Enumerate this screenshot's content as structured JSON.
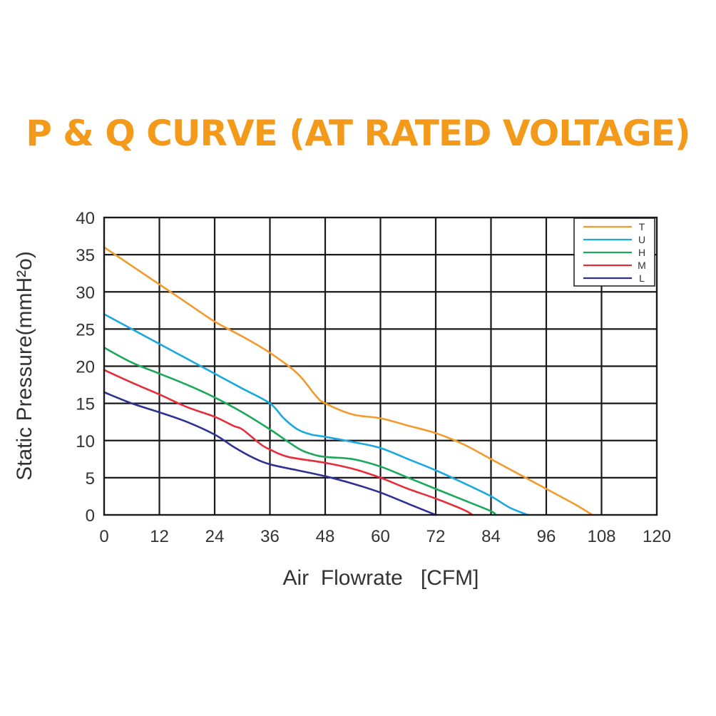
{
  "page": {
    "title": "P & Q CURVE (AT RATED VOLTAGE)"
  },
  "chart_data": {
    "type": "line",
    "title": "P & Q CURVE (AT RATED VOLTAGE)",
    "xlabel": "Air  Flowrate   [CFM]",
    "ylabel": "Static Pressure(mmH²o)",
    "xlim": [
      0,
      120
    ],
    "ylim": [
      0,
      40
    ],
    "xticks": [
      0,
      12,
      24,
      36,
      48,
      60,
      72,
      84,
      96,
      108,
      120
    ],
    "yticks": [
      0,
      5,
      10,
      15,
      20,
      25,
      30,
      35,
      40
    ],
    "grid": true,
    "legend_position": "top-right",
    "series": [
      {
        "name": "T",
        "color": "#f39a2d",
        "points": [
          [
            0,
            36
          ],
          [
            6,
            33.5
          ],
          [
            12,
            31
          ],
          [
            18,
            28.5
          ],
          [
            24,
            26
          ],
          [
            30,
            24
          ],
          [
            36,
            21.8
          ],
          [
            42,
            19
          ],
          [
            46,
            16
          ],
          [
            48,
            15
          ],
          [
            54,
            13.5
          ],
          [
            60,
            13
          ],
          [
            66,
            12
          ],
          [
            72,
            11
          ],
          [
            78,
            9.5
          ],
          [
            84,
            7.5
          ],
          [
            90,
            5.5
          ],
          [
            96,
            3.5
          ],
          [
            102,
            1.5
          ],
          [
            106,
            0
          ]
        ]
      },
      {
        "name": "U",
        "color": "#1aa8e0",
        "points": [
          [
            0,
            27
          ],
          [
            6,
            25
          ],
          [
            12,
            23
          ],
          [
            18,
            21
          ],
          [
            24,
            19
          ],
          [
            30,
            17
          ],
          [
            36,
            15
          ],
          [
            39,
            13
          ],
          [
            42,
            11.5
          ],
          [
            45,
            10.8
          ],
          [
            48,
            10.5
          ],
          [
            54,
            9.8
          ],
          [
            60,
            9
          ],
          [
            66,
            7.5
          ],
          [
            72,
            6
          ],
          [
            78,
            4.3
          ],
          [
            84,
            2.5
          ],
          [
            88,
            1
          ],
          [
            92,
            0
          ]
        ]
      },
      {
        "name": "H",
        "color": "#1ba85a",
        "points": [
          [
            0,
            22.5
          ],
          [
            6,
            20.5
          ],
          [
            12,
            19
          ],
          [
            18,
            17.5
          ],
          [
            24,
            15.8
          ],
          [
            30,
            13.8
          ],
          [
            36,
            11.5
          ],
          [
            42,
            9
          ],
          [
            45,
            8.2
          ],
          [
            48,
            7.8
          ],
          [
            54,
            7.5
          ],
          [
            60,
            6.5
          ],
          [
            66,
            5
          ],
          [
            72,
            3.5
          ],
          [
            78,
            2
          ],
          [
            84,
            0.5
          ],
          [
            85,
            0
          ]
        ]
      },
      {
        "name": "M",
        "color": "#e62e3a",
        "points": [
          [
            0,
            19.5
          ],
          [
            6,
            17.8
          ],
          [
            12,
            16.2
          ],
          [
            18,
            14.5
          ],
          [
            24,
            13.2
          ],
          [
            28,
            12
          ],
          [
            30,
            11.5
          ],
          [
            34,
            9.5
          ],
          [
            36,
            8.8
          ],
          [
            40,
            7.8
          ],
          [
            48,
            7
          ],
          [
            54,
            6.2
          ],
          [
            60,
            5
          ],
          [
            66,
            3.5
          ],
          [
            72,
            2.2
          ],
          [
            78,
            0.7
          ],
          [
            80,
            0
          ]
        ]
      },
      {
        "name": "L",
        "color": "#2e3192",
        "points": [
          [
            0,
            16.5
          ],
          [
            6,
            15
          ],
          [
            12,
            13.8
          ],
          [
            18,
            12.5
          ],
          [
            24,
            10.8
          ],
          [
            28,
            9.2
          ],
          [
            32,
            7.8
          ],
          [
            36,
            6.8
          ],
          [
            42,
            6
          ],
          [
            48,
            5.2
          ],
          [
            54,
            4.2
          ],
          [
            60,
            3
          ],
          [
            66,
            1.5
          ],
          [
            70,
            0.5
          ],
          [
            72,
            0
          ]
        ]
      }
    ]
  }
}
